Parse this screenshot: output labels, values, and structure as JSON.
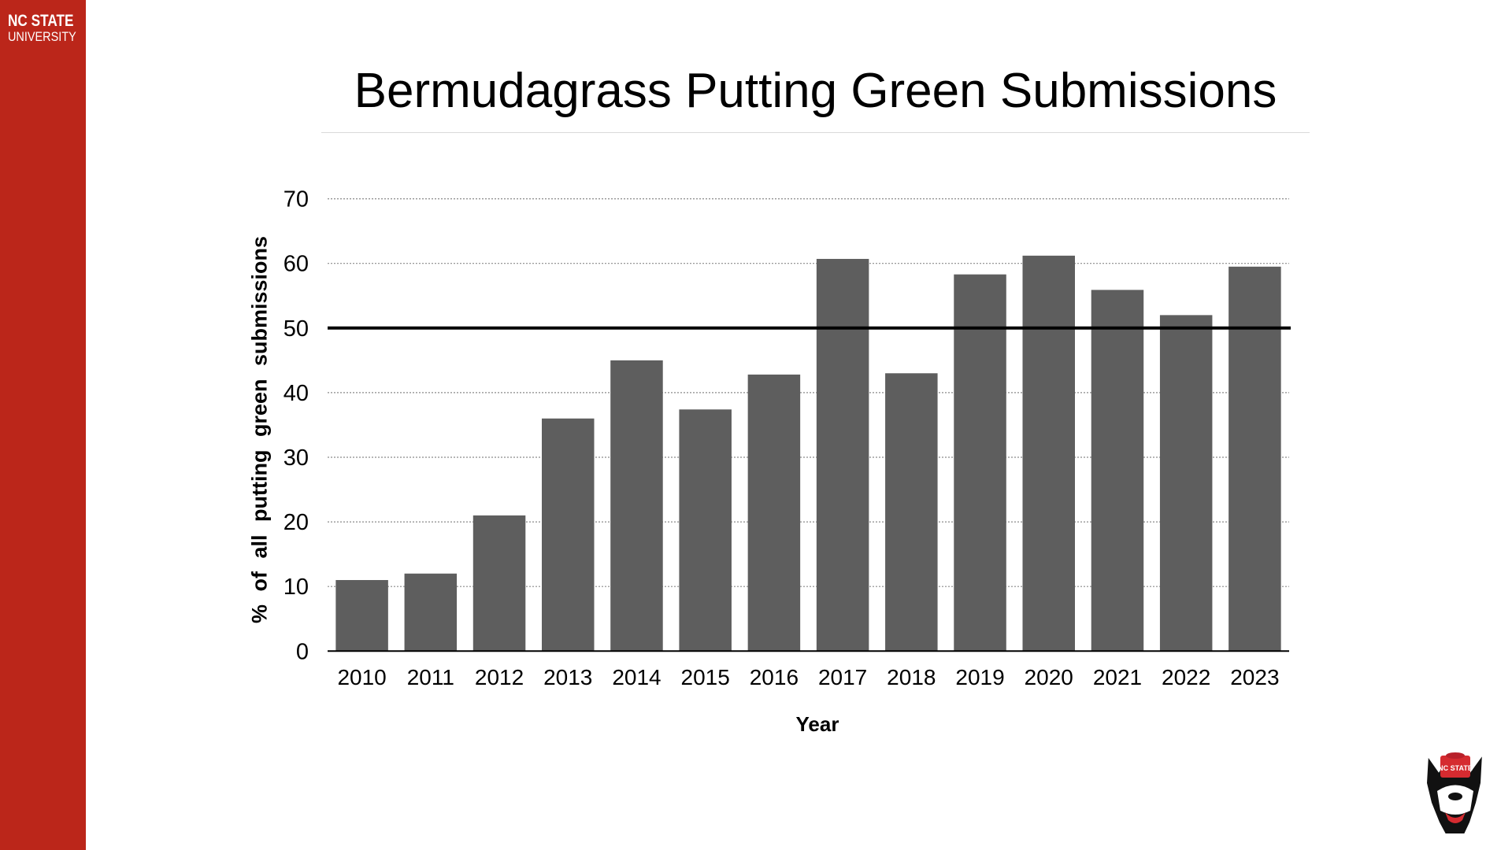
{
  "brand": {
    "line1": "NC STATE",
    "line2": "UNIVERSITY",
    "color": "#bb261a"
  },
  "chart_data": {
    "type": "bar",
    "title": "Bermudagrass Putting Green Submissions",
    "xlabel": "Year",
    "ylabel": "% of all putting green submissions",
    "categories": [
      "2010",
      "2011",
      "2012",
      "2013",
      "2014",
      "2015",
      "2016",
      "2017",
      "2018",
      "2019",
      "2020",
      "2021",
      "2022",
      "2023"
    ],
    "values": [
      11,
      12,
      21,
      36,
      45,
      37.4,
      42.8,
      60.7,
      43,
      58.3,
      61.2,
      55.9,
      52,
      59.5
    ],
    "ylim": [
      0,
      70
    ],
    "yticks": [
      0,
      10,
      20,
      30,
      40,
      50,
      60,
      70
    ],
    "reference_line": 50,
    "grid": true,
    "bar_color": "#5e5e5e"
  },
  "logo": {
    "text": "NC STATE",
    "icon": "wolf-mascot-icon"
  }
}
